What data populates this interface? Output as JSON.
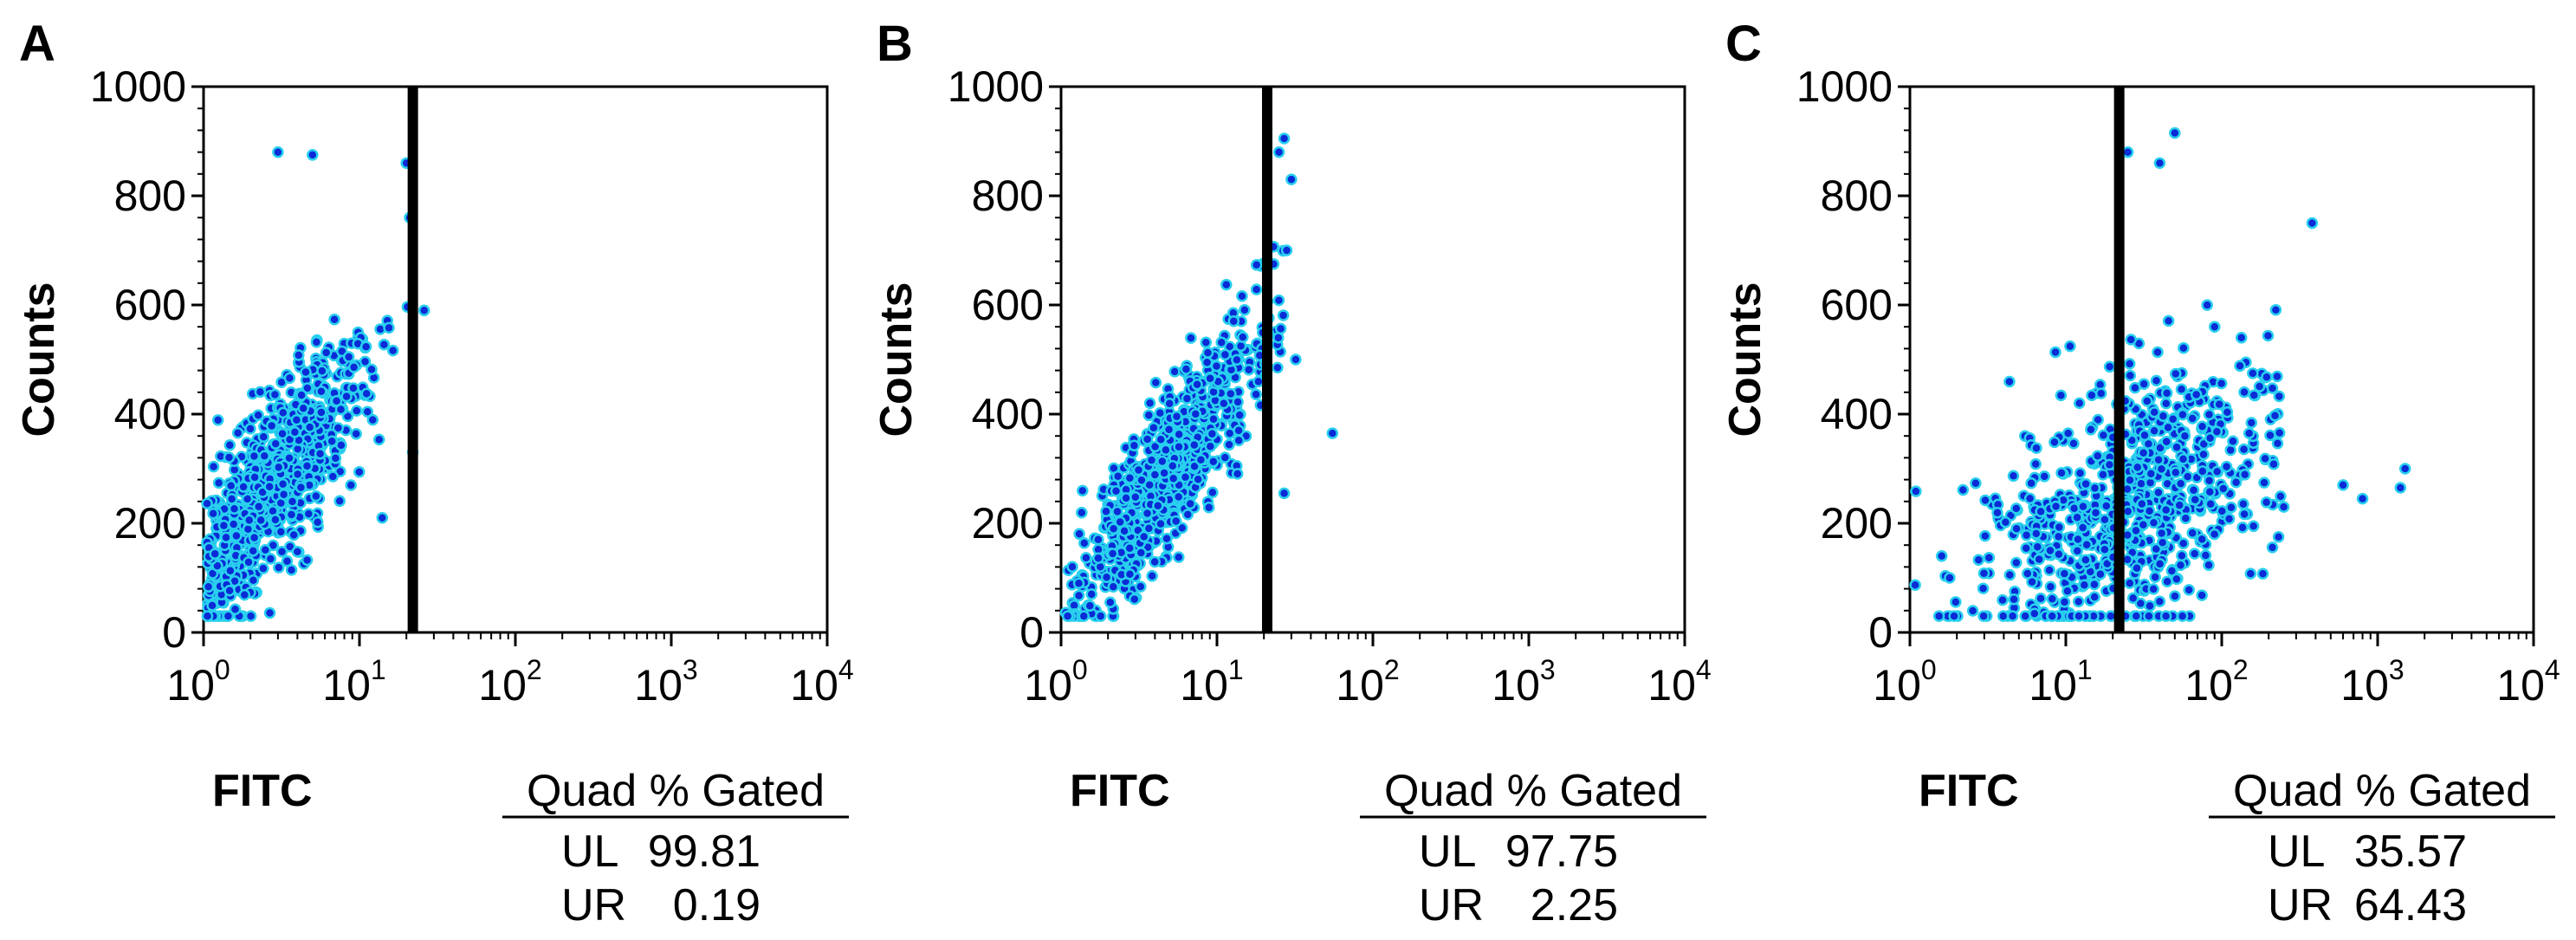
{
  "figure": {
    "panels": [
      {
        "letter": "A",
        "ylabel": "Counts",
        "xlabel": "FITC",
        "table": {
          "header": "Quad % Gated",
          "rows": [
            {
              "label": "UL",
              "value": "99.81"
            },
            {
              "label": "UR",
              "value": "0.19"
            }
          ]
        }
      },
      {
        "letter": "B",
        "ylabel": "Counts",
        "xlabel": "FITC",
        "table": {
          "header": "Quad % Gated",
          "rows": [
            {
              "label": "UL",
              "value": "97.75"
            },
            {
              "label": "UR",
              "value": "2.25"
            }
          ]
        }
      },
      {
        "letter": "C",
        "ylabel": "Counts",
        "xlabel": "FITC",
        "table": {
          "header": "Quad % Gated",
          "rows": [
            {
              "label": "UL",
              "value": "35.57"
            },
            {
              "label": "UR",
              "value": "64.43"
            }
          ]
        }
      }
    ],
    "y_tick_labels": [
      "0",
      "200",
      "400",
      "600",
      "800",
      "1000"
    ],
    "x_tick_base": "10",
    "x_tick_exponents": [
      "0",
      "1",
      "2",
      "3",
      "4"
    ]
  },
  "chart_data": [
    {
      "type": "scatter",
      "panel": "A",
      "xscale": "log",
      "xlim": [
        1,
        10000
      ],
      "ylim": [
        0,
        1000
      ],
      "xlabel": "FITC",
      "ylabel": "Counts",
      "gate_x": 22,
      "cluster": {
        "x_center": 3,
        "x_spread_decades": 0.3,
        "x_max": 21.5,
        "y_center": 280,
        "correlation": 0.8,
        "n": 750
      },
      "outliers": [
        [
          3,
          880
        ],
        [
          5,
          875
        ],
        [
          20,
          860
        ],
        [
          21,
          760
        ],
        [
          26,
          590
        ],
        [
          22,
          330
        ],
        [
          14,
          210
        ]
      ],
      "color": "#1a6de0",
      "point_color": "#0a2bd6",
      "point_halo": "#29d0ee"
    },
    {
      "type": "scatter",
      "panel": "B",
      "xscale": "log",
      "xlim": [
        1,
        10000
      ],
      "ylim": [
        0,
        1000
      ],
      "xlabel": "FITC",
      "ylabel": "Counts",
      "gate_x": 21,
      "cluster": {
        "x_center": 5,
        "x_spread_decades": 0.3,
        "x_max": 28,
        "y_center": 300,
        "correlation": 0.85,
        "n": 750
      },
      "outliers": [
        [
          27,
          905
        ],
        [
          25,
          880
        ],
        [
          30,
          830
        ],
        [
          28,
          700
        ],
        [
          32,
          500
        ],
        [
          55,
          365
        ],
        [
          27,
          255
        ],
        [
          1.3,
          90
        ],
        [
          1.4,
          30
        ]
      ],
      "color": "#1a6de0",
      "point_color": "#0a2bd6",
      "point_halo": "#29d0ee"
    },
    {
      "type": "scatter",
      "panel": "C",
      "xscale": "log",
      "xlim": [
        1,
        10000
      ],
      "ylim": [
        0,
        1000
      ],
      "xlabel": "FITC",
      "ylabel": "Counts",
      "gate_x": 22,
      "cluster": {
        "x_center": 25,
        "x_spread_decades": 0.45,
        "x_max": 250,
        "y_center": 230,
        "correlation": 0.45,
        "n": 750
      },
      "outliers": [
        [
          50,
          915
        ],
        [
          40,
          860
        ],
        [
          25,
          880
        ],
        [
          380,
          750
        ],
        [
          1500,
          300
        ],
        [
          1400,
          265
        ],
        [
          600,
          270
        ],
        [
          800,
          245
        ],
        [
          1.6,
          140
        ],
        [
          1.8,
          100
        ],
        [
          90,
          560
        ],
        [
          150,
          365
        ],
        [
          250,
          230
        ]
      ],
      "color": "#1a6de0",
      "point_color": "#0a2bd6",
      "point_halo": "#29d0ee"
    }
  ]
}
